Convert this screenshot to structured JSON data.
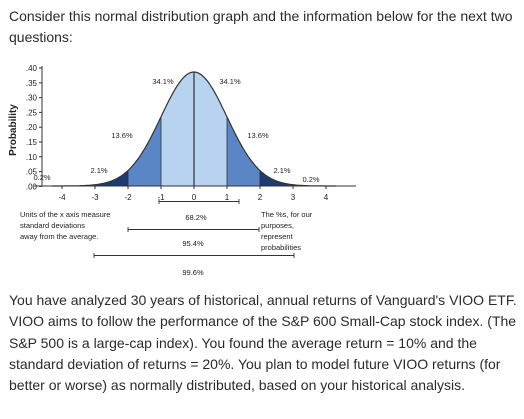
{
  "intro": "Consider this normal distribution graph and the information below for the next two questions:",
  "figure": {
    "y_axis_title": "Probability",
    "y_ticks": [
      ".40",
      ".35",
      ".30",
      ".25",
      ".20",
      ".15",
      ".10",
      ".05",
      ".00"
    ],
    "x_ticks": [
      "-4",
      "-3",
      "-2",
      "-1",
      "0",
      "1",
      "2",
      "3",
      "4"
    ],
    "region_labels": {
      "left_tail": "0.2%",
      "left_2_3": "2.1%",
      "left_1_2": "13.6%",
      "left_0_1": "34.1%",
      "right_0_1": "34.1%",
      "right_1_2": "13.6%",
      "right_2_3": "2.1%",
      "right_tail": "0.2%"
    },
    "note_left": [
      "Units of the x axis measure",
      "standard deviations",
      "away from the average."
    ],
    "note_right": [
      "The %s, for our",
      "purposes,",
      "represent",
      "probabilities"
    ],
    "brackets": {
      "one_sd": "68.2%",
      "two_sd": "95.4%",
      "three_sd": "99.6%"
    },
    "colors": {
      "dark": "#1f3b73",
      "mid": "#5a86c5",
      "light": "#b7d3ef",
      "axis": "#333333"
    }
  },
  "body": "You have analyzed 30 years of historical, annual returns of Vanguard's VIOO ETF.  VIOO aims to follow the performance of the S&P 600 Small-Cap stock index.  (The S&P 500 is a large-cap index).  You found the average return = 10% and the standard deviation of returns = 20%.  You plan to model future VIOO returns (for better or worse) as normally distributed, based on your historical analysis."
}
